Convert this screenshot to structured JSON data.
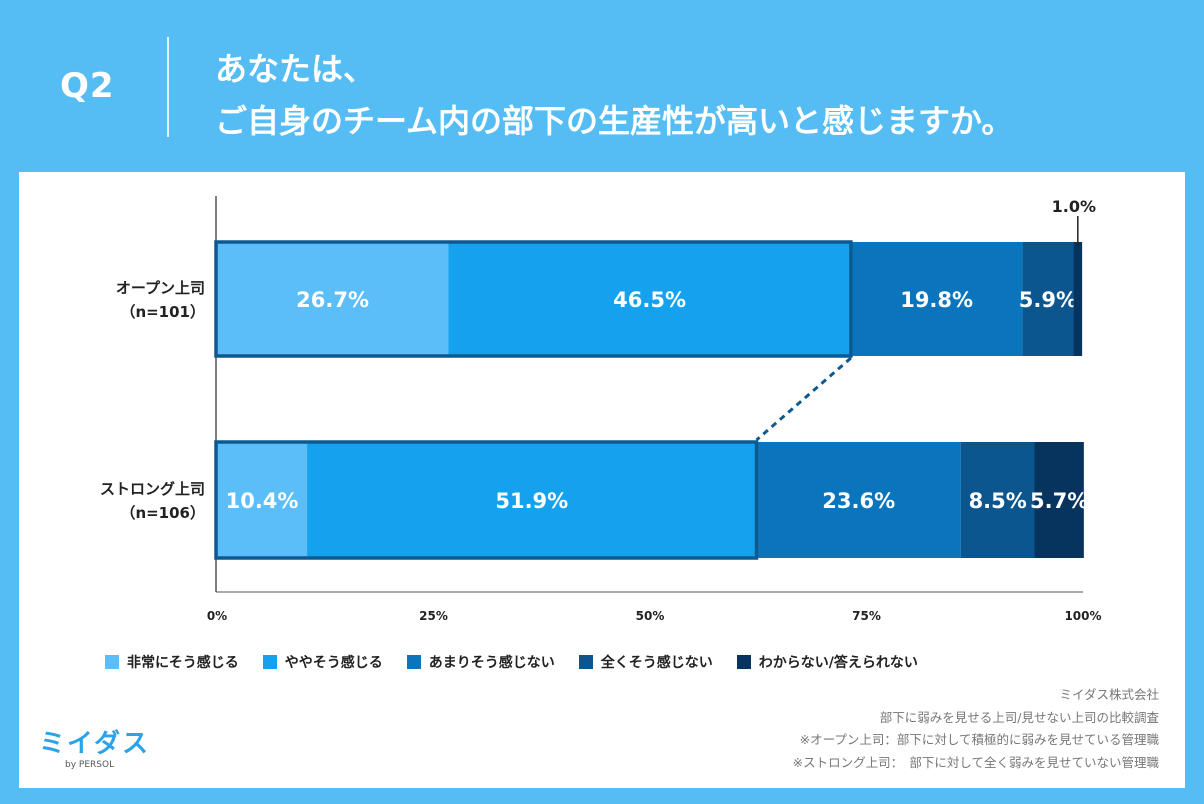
{
  "header": {
    "q_label": "Q2",
    "title_line1": "あなたは、",
    "title_line2": "ご自身のチーム内の部下の生産性が高いと感じますか。"
  },
  "chart_data": {
    "type": "bar",
    "orientation": "horizontal-stacked-100",
    "categories": [
      {
        "line1": "オープン上司",
        "line2": "（n=101）"
      },
      {
        "line1": "ストロング上司",
        "line2": "（n=106）"
      }
    ],
    "series": [
      {
        "name": "非常にそう感じる",
        "color": "#5bbef8",
        "values": [
          26.7,
          10.4
        ]
      },
      {
        "name": "ややそう感じる",
        "color": "#14a2ee",
        "values": [
          46.5,
          51.9
        ]
      },
      {
        "name": "あまりそう感じない",
        "color": "#0a75bd",
        "values": [
          19.8,
          23.6
        ]
      },
      {
        "name": "全くそう感じない",
        "color": "#0b568f",
        "values": [
          5.9,
          8.5
        ]
      },
      {
        "name": "わからない/答えられない",
        "color": "#07345f",
        "values": [
          1.0,
          5.7
        ]
      }
    ],
    "data_labels": [
      [
        "26.7%",
        "46.5%",
        "19.8%",
        "5.9%",
        "1.0%"
      ],
      [
        "10.4%",
        "51.9%",
        "23.6%",
        "8.5%",
        "5.7%"
      ]
    ],
    "x_ticks": [
      "0%",
      "25%",
      "50%",
      "75%",
      "100%"
    ],
    "xlim": [
      0,
      100
    ],
    "highlight_color": "#0d5a90",
    "legend_position": "bottom"
  },
  "notes": {
    "company": "ミイダス株式会社",
    "survey": "部下に弱みを見せる上司/見せない上司の比較調査",
    "def_open": "※オープン上司：部下に対して積極的に弱みを見せている管理職",
    "def_strong": "※ストロング上司：　部下に対して全く弱みを見せていない管理職"
  },
  "logo": {
    "main": "ミイダス",
    "sub": "by PERSOL"
  }
}
